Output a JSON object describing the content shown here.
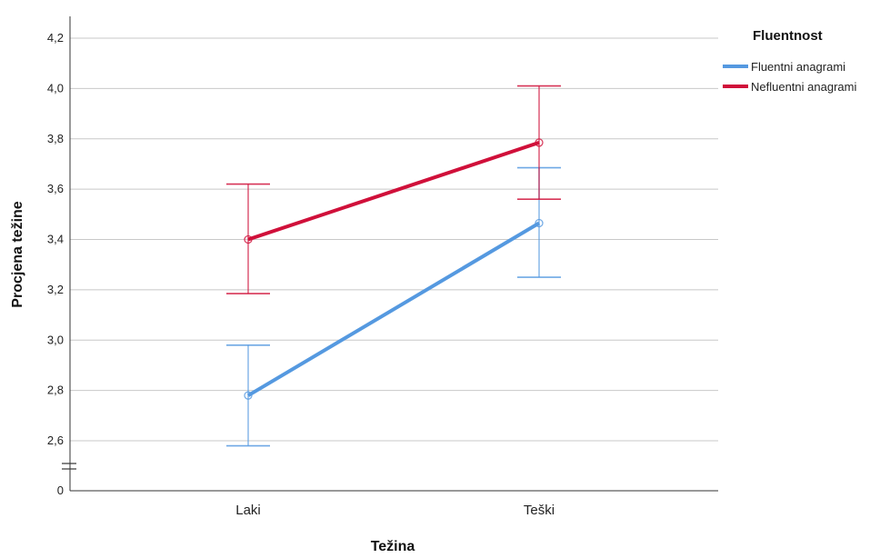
{
  "chart_data": {
    "type": "line",
    "xlabel": "Težina",
    "ylabel": "Procjena težine",
    "categories": [
      "Laki",
      "Teški"
    ],
    "y_axis": {
      "ticks": [
        "0",
        "2,6",
        "2,8",
        "3,0",
        "3,2",
        "3,4",
        "3,6",
        "3,8",
        "4,0",
        "4,2"
      ],
      "ylim": [
        2.5,
        4.3
      ],
      "axis_break": true,
      "break_bottom_label": "0"
    },
    "grid": true,
    "legend": {
      "title": "Fluentnost",
      "placement": "top-right"
    },
    "series": [
      {
        "name": "Fluentni anagrami",
        "color": "#5599e0",
        "values": [
          2.78,
          3.465
        ],
        "error_low": [
          2.58,
          3.25
        ],
        "error_high": [
          2.98,
          3.685
        ]
      },
      {
        "name": "Nefluentni anagrami",
        "color": "#d0103a",
        "values": [
          3.4,
          3.785
        ],
        "error_low": [
          3.185,
          3.56
        ],
        "error_high": [
          3.62,
          4.01
        ]
      }
    ]
  }
}
